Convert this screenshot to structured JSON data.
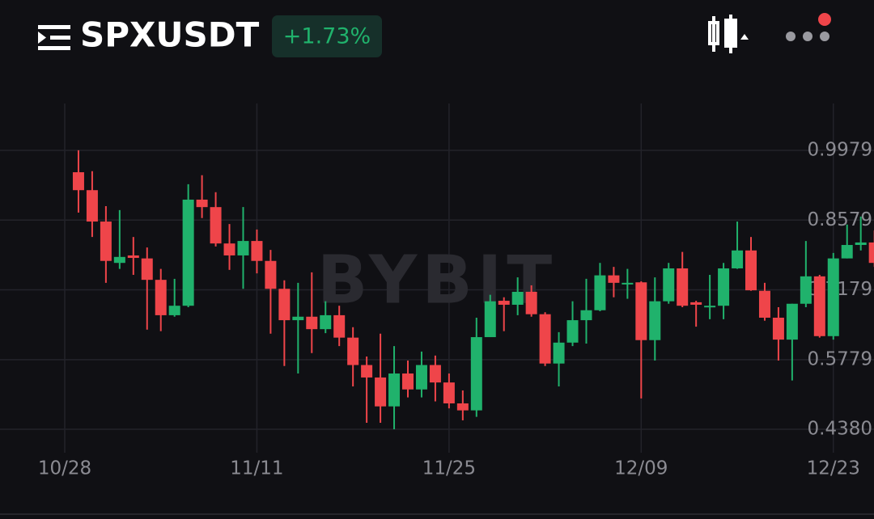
{
  "header": {
    "symbol": "SPXUSDT",
    "change": "+1.73%"
  },
  "chart_data": {
    "type": "candlestick",
    "watermark": "BYBIT",
    "categories": [
      "10/28",
      null,
      null,
      null,
      null,
      null,
      null,
      null,
      null,
      null,
      null,
      null,
      null,
      null,
      "11/11",
      null,
      null,
      null,
      null,
      null,
      null,
      null,
      null,
      null,
      null,
      null,
      null,
      null,
      "11/25",
      null,
      null,
      null,
      null,
      null,
      null,
      null,
      null,
      null,
      null,
      null,
      null,
      null,
      "12/09",
      null,
      null,
      null,
      null,
      null,
      null,
      null,
      null,
      null,
      null,
      null,
      null,
      null,
      "12/23",
      null,
      null,
      null
    ],
    "open": [
      null,
      0.954,
      0.918,
      0.855,
      0.772,
      0.787,
      0.781,
      0.738,
      0.667,
      0.686,
      0.899,
      0.884,
      0.811,
      0.787,
      0.816,
      0.776,
      0.72,
      0.657,
      0.664,
      0.639,
      0.667,
      0.622,
      0.567,
      0.542,
      0.484,
      0.55,
      0.518,
      0.567,
      0.532,
      0.49,
      0.476,
      0.623,
      0.696,
      0.688,
      0.714,
      0.669,
      0.57,
      0.612,
      0.657,
      0.677,
      0.747,
      0.73,
      0.733,
      0.617,
      0.695,
      0.761,
      0.693,
      0.683,
      0.686,
      0.761,
      0.797,
      0.716,
      0.662,
      0.618,
      0.69,
      0.745,
      0.625,
      0.781,
      0.808,
      0.813
    ],
    "high": [
      null,
      0.998,
      0.956,
      0.886,
      0.878,
      0.824,
      0.803,
      0.76,
      0.74,
      0.93,
      0.948,
      0.914,
      0.85,
      0.884,
      0.839,
      0.798,
      0.737,
      0.732,
      0.753,
      0.695,
      0.686,
      0.643,
      0.584,
      0.63,
      0.605,
      0.576,
      0.594,
      0.586,
      0.55,
      0.516,
      0.662,
      0.708,
      0.703,
      0.743,
      0.727,
      0.673,
      0.633,
      0.695,
      0.74,
      0.772,
      0.764,
      0.76,
      0.735,
      0.743,
      0.772,
      0.794,
      0.696,
      0.748,
      0.772,
      0.855,
      0.824,
      0.732,
      0.683,
      0.69,
      0.816,
      0.748,
      0.792,
      0.849,
      0.865,
      0.837
    ],
    "low": [
      null,
      0.873,
      0.824,
      0.732,
      0.76,
      0.748,
      0.638,
      0.635,
      0.664,
      0.683,
      0.862,
      0.805,
      0.758,
      0.72,
      0.751,
      0.63,
      0.565,
      0.55,
      0.591,
      0.631,
      0.605,
      0.524,
      0.451,
      0.451,
      0.438,
      0.502,
      0.502,
      0.494,
      0.48,
      0.456,
      0.463,
      0.623,
      0.635,
      0.667,
      0.664,
      0.565,
      0.524,
      0.605,
      0.61,
      0.675,
      0.703,
      0.7,
      0.5,
      0.576,
      0.69,
      0.683,
      0.644,
      0.659,
      0.659,
      0.76,
      0.716,
      0.656,
      0.576,
      0.536,
      0.683,
      0.622,
      0.618,
      0.781,
      0.797,
      0.764
    ],
    "close": [
      null,
      0.918,
      0.855,
      0.776,
      0.784,
      0.782,
      0.738,
      0.667,
      0.686,
      0.899,
      0.884,
      0.811,
      0.787,
      0.816,
      0.776,
      0.72,
      0.657,
      0.664,
      0.639,
      0.667,
      0.622,
      0.567,
      0.542,
      0.484,
      0.55,
      0.518,
      0.567,
      0.532,
      0.49,
      0.476,
      0.623,
      0.695,
      0.688,
      0.714,
      0.669,
      0.57,
      0.612,
      0.657,
      0.677,
      0.747,
      0.732,
      0.732,
      0.617,
      0.695,
      0.761,
      0.686,
      0.688,
      0.686,
      0.761,
      0.797,
      0.717,
      0.662,
      0.618,
      0.69,
      0.745,
      0.625,
      0.781,
      0.808,
      0.813,
      0.772
    ],
    "up_color": "#20b26c",
    "down_color": "#ef454a",
    "ylim": [
      0.391,
      1.092
    ],
    "yticks": [
      {
        "value": 0.438,
        "label": "0.4380"
      },
      0.5779,
      0.7179,
      0.8579,
      0.9979
    ],
    "grid": true
  }
}
